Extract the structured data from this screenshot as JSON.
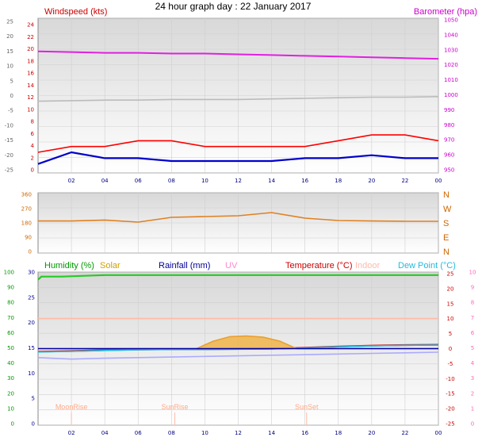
{
  "chart_data": [
    {
      "type": "line",
      "title": "24 hour graph day : 22 January 2017",
      "x_ticks": [
        "02",
        "04",
        "06",
        "08",
        "10",
        "12",
        "14",
        "16",
        "18",
        "20",
        "22",
        "00"
      ],
      "left_axis": {
        "label": "Windspeed (kts)",
        "ticks": [
          "24",
          "22",
          "20",
          "18",
          "16",
          "14",
          "12",
          "10",
          "8",
          "6",
          "4",
          "2",
          "0"
        ],
        "range": [
          0,
          25
        ]
      },
      "outer_left_ticks": [
        "25",
        "20",
        "15",
        "10",
        "5",
        "0",
        "-5",
        "-10",
        "-15",
        "-20",
        "-25"
      ],
      "right_axis": {
        "label": "Barometer (hpa)",
        "ticks": [
          "1050",
          "1040",
          "1030",
          "1020",
          "1010",
          "1000",
          "990",
          "980",
          "970",
          "960",
          "950"
        ],
        "range": [
          950,
          1050
        ]
      },
      "series": [
        {
          "name": "Barometer",
          "color": "#e020e0",
          "x": [
            0,
            2,
            4,
            6,
            8,
            10,
            12,
            14,
            16,
            18,
            20,
            22,
            24
          ],
          "values": [
            1029,
            1028.5,
            1028,
            1028,
            1027.5,
            1027.5,
            1027,
            1026.5,
            1026,
            1025.5,
            1025,
            1024.5,
            1024
          ]
        },
        {
          "color": "#bbbbbb",
          "x": [
            0,
            2,
            4,
            6,
            8,
            10,
            12,
            14,
            16,
            18,
            20,
            22,
            24
          ],
          "values": [
            11.8,
            11.9,
            12.0,
            12.0,
            12.1,
            12.1,
            12.1,
            12.2,
            12.3,
            12.4,
            12.5,
            12.5,
            12.6
          ]
        },
        {
          "color": "#ff0000",
          "x": [
            0,
            2,
            4,
            6,
            8,
            10,
            12,
            14,
            16,
            18,
            20,
            22,
            24
          ],
          "values": [
            3,
            4,
            4,
            5,
            5,
            4,
            4,
            4,
            4,
            5,
            6,
            6,
            5
          ]
        },
        {
          "color": "#0000cc",
          "x": [
            0,
            2,
            4,
            6,
            8,
            10,
            12,
            14,
            16,
            18,
            20,
            22,
            24
          ],
          "values": [
            1,
            3,
            2,
            2,
            1.5,
            1.5,
            1.5,
            1.5,
            2,
            2,
            2.5,
            2,
            2
          ]
        }
      ]
    },
    {
      "type": "line",
      "y_ticks": [
        "360",
        "270",
        "180",
        "90",
        "0"
      ],
      "directions": [
        "N",
        "W",
        "S",
        "E",
        "N"
      ],
      "range": [
        0,
        360
      ],
      "series": [
        {
          "color": "#e08020",
          "x": [
            0,
            2,
            4,
            6,
            8,
            10,
            12,
            14,
            16,
            18,
            20,
            22,
            24
          ],
          "values": [
            192,
            192,
            198,
            185,
            215,
            220,
            225,
            245,
            210,
            195,
            192,
            190,
            190
          ]
        }
      ]
    },
    {
      "type": "line",
      "labels": [
        {
          "text": "Humidity (%)",
          "color": "#009900"
        },
        {
          "text": "Solar",
          "color": "#d0a000"
        },
        {
          "text": "Rainfall (mm)",
          "color": "#000099"
        },
        {
          "text": "UV",
          "color": "#ff88cc"
        },
        {
          "text": "Temperature (°C)",
          "color": "#cc0000"
        },
        {
          "text": "Indoor",
          "color": "#ffbbaa"
        },
        {
          "text": "Dew Point (°C)",
          "color": "#22bbdd"
        }
      ],
      "humidity_ticks": [
        "100",
        "90",
        "80",
        "70",
        "60",
        "50",
        "40",
        "30",
        "20",
        "10",
        "0"
      ],
      "rain_ticks": [
        "30",
        "25",
        "20",
        "15",
        "10",
        "5",
        "0"
      ],
      "temp_ticks": [
        "25",
        "20",
        "15",
        "10",
        "5",
        "0",
        "-5",
        "-10",
        "-15",
        "-20",
        "-25"
      ],
      "uv_ticks": [
        "10",
        "9",
        "8",
        "7",
        "6",
        "5",
        "4",
        "3",
        "2",
        "1",
        "0"
      ],
      "markers": [
        "MoonRise",
        "SunRise",
        "SunSet"
      ],
      "humidity_range": [
        0,
        100
      ],
      "temp_range": [
        -25,
        25
      ],
      "series": [
        {
          "name": "Humidity (%)",
          "color": "#22cc22",
          "x": [
            0,
            0.2,
            1.4,
            4,
            6,
            24
          ],
          "values": [
            95,
            97,
            97,
            98,
            98,
            98
          ]
        },
        {
          "name": "Indoor",
          "color": "#ffbbaa",
          "x": [
            0,
            24
          ],
          "values": [
            10,
            10
          ]
        },
        {
          "name": "Temperature (°C)",
          "color": "#cc2222",
          "x": [
            0,
            2,
            4,
            6,
            8,
            10,
            12,
            14,
            16,
            18,
            20,
            22,
            24
          ],
          "values": [
            -1,
            -0.8,
            -0.5,
            -0.3,
            -0.2,
            -0.2,
            -0.1,
            0,
            0.3,
            0.7,
            1.0,
            1.2,
            1.3
          ]
        },
        {
          "name": "Dew Point (°C)",
          "color": "#22bbdd",
          "x": [
            0,
            2,
            4,
            6,
            8,
            10,
            12,
            14,
            16,
            18,
            20,
            22,
            24
          ],
          "values": [
            -1.1,
            -0.9,
            -0.6,
            -0.4,
            -0.3,
            -0.3,
            -0.2,
            -0.1,
            0.2,
            0.6,
            0.9,
            1.1,
            1.2
          ]
        },
        {
          "color": "#aaaaff",
          "x": [
            0,
            2,
            4,
            6,
            8,
            10,
            12,
            14,
            16,
            18,
            20,
            22,
            24
          ],
          "values": [
            -3,
            -3.5,
            -3.2,
            -3,
            -2.8,
            -2.6,
            -2.4,
            -2.2,
            -2,
            -1.8,
            -1.6,
            -1.4,
            -1.2
          ]
        },
        {
          "name": "Solar",
          "color": "#e8a030",
          "x": [
            0,
            9.5,
            10.5,
            11.5,
            12.5,
            13.5,
            14.5,
            15.5,
            24
          ],
          "values": [
            0,
            0,
            2.5,
            4,
            4.2,
            3.8,
            2.5,
            0,
            0
          ]
        },
        {
          "name": "Rainfall (mm)",
          "color": "#0000aa",
          "x": [
            0,
            24
          ],
          "values": [
            0,
            0
          ]
        }
      ]
    }
  ]
}
